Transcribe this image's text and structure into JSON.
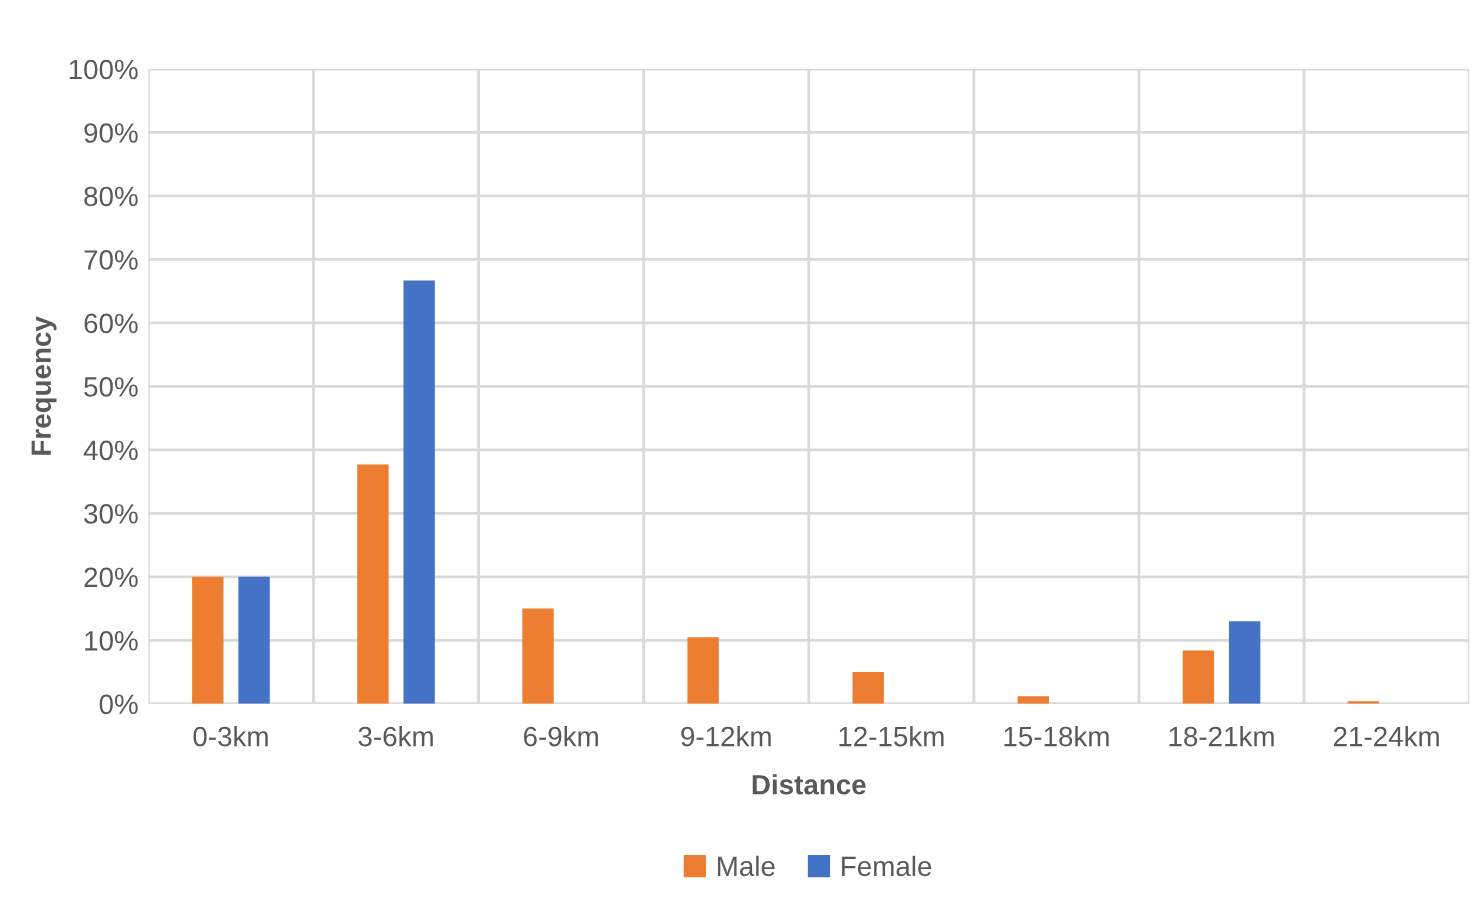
{
  "chart_data": {
    "type": "bar",
    "xlabel": "Distance",
    "ylabel": "Frequency",
    "categories": [
      "0-3km",
      "3-6km",
      "6-9km",
      "9-12km",
      "12-15km",
      "15-18km",
      "18-21km",
      "21-24km"
    ],
    "series": [
      {
        "name": "Male",
        "color": "#ed7d31",
        "values": [
          20,
          37.7,
          15,
          10.5,
          5,
          1.2,
          8.4,
          0.4
        ]
      },
      {
        "name": "Female",
        "color": "#4472c4",
        "values": [
          20,
          66.7,
          null,
          null,
          null,
          null,
          13,
          null
        ]
      }
    ],
    "ylim": [
      0,
      100
    ],
    "yticks": [
      {
        "value": 0,
        "label": "0%"
      },
      {
        "value": 10,
        "label": "10%"
      },
      {
        "value": 20,
        "label": "20%"
      },
      {
        "value": 30,
        "label": "30%"
      },
      {
        "value": 40,
        "label": "40%"
      },
      {
        "value": 50,
        "label": "50%"
      },
      {
        "value": 60,
        "label": "60%"
      },
      {
        "value": 70,
        "label": "70%"
      },
      {
        "value": 80,
        "label": "80%"
      },
      {
        "value": 90,
        "label": "90%"
      },
      {
        "value": 100,
        "label": "100%"
      }
    ],
    "grid": true,
    "legend": "bottom"
  }
}
